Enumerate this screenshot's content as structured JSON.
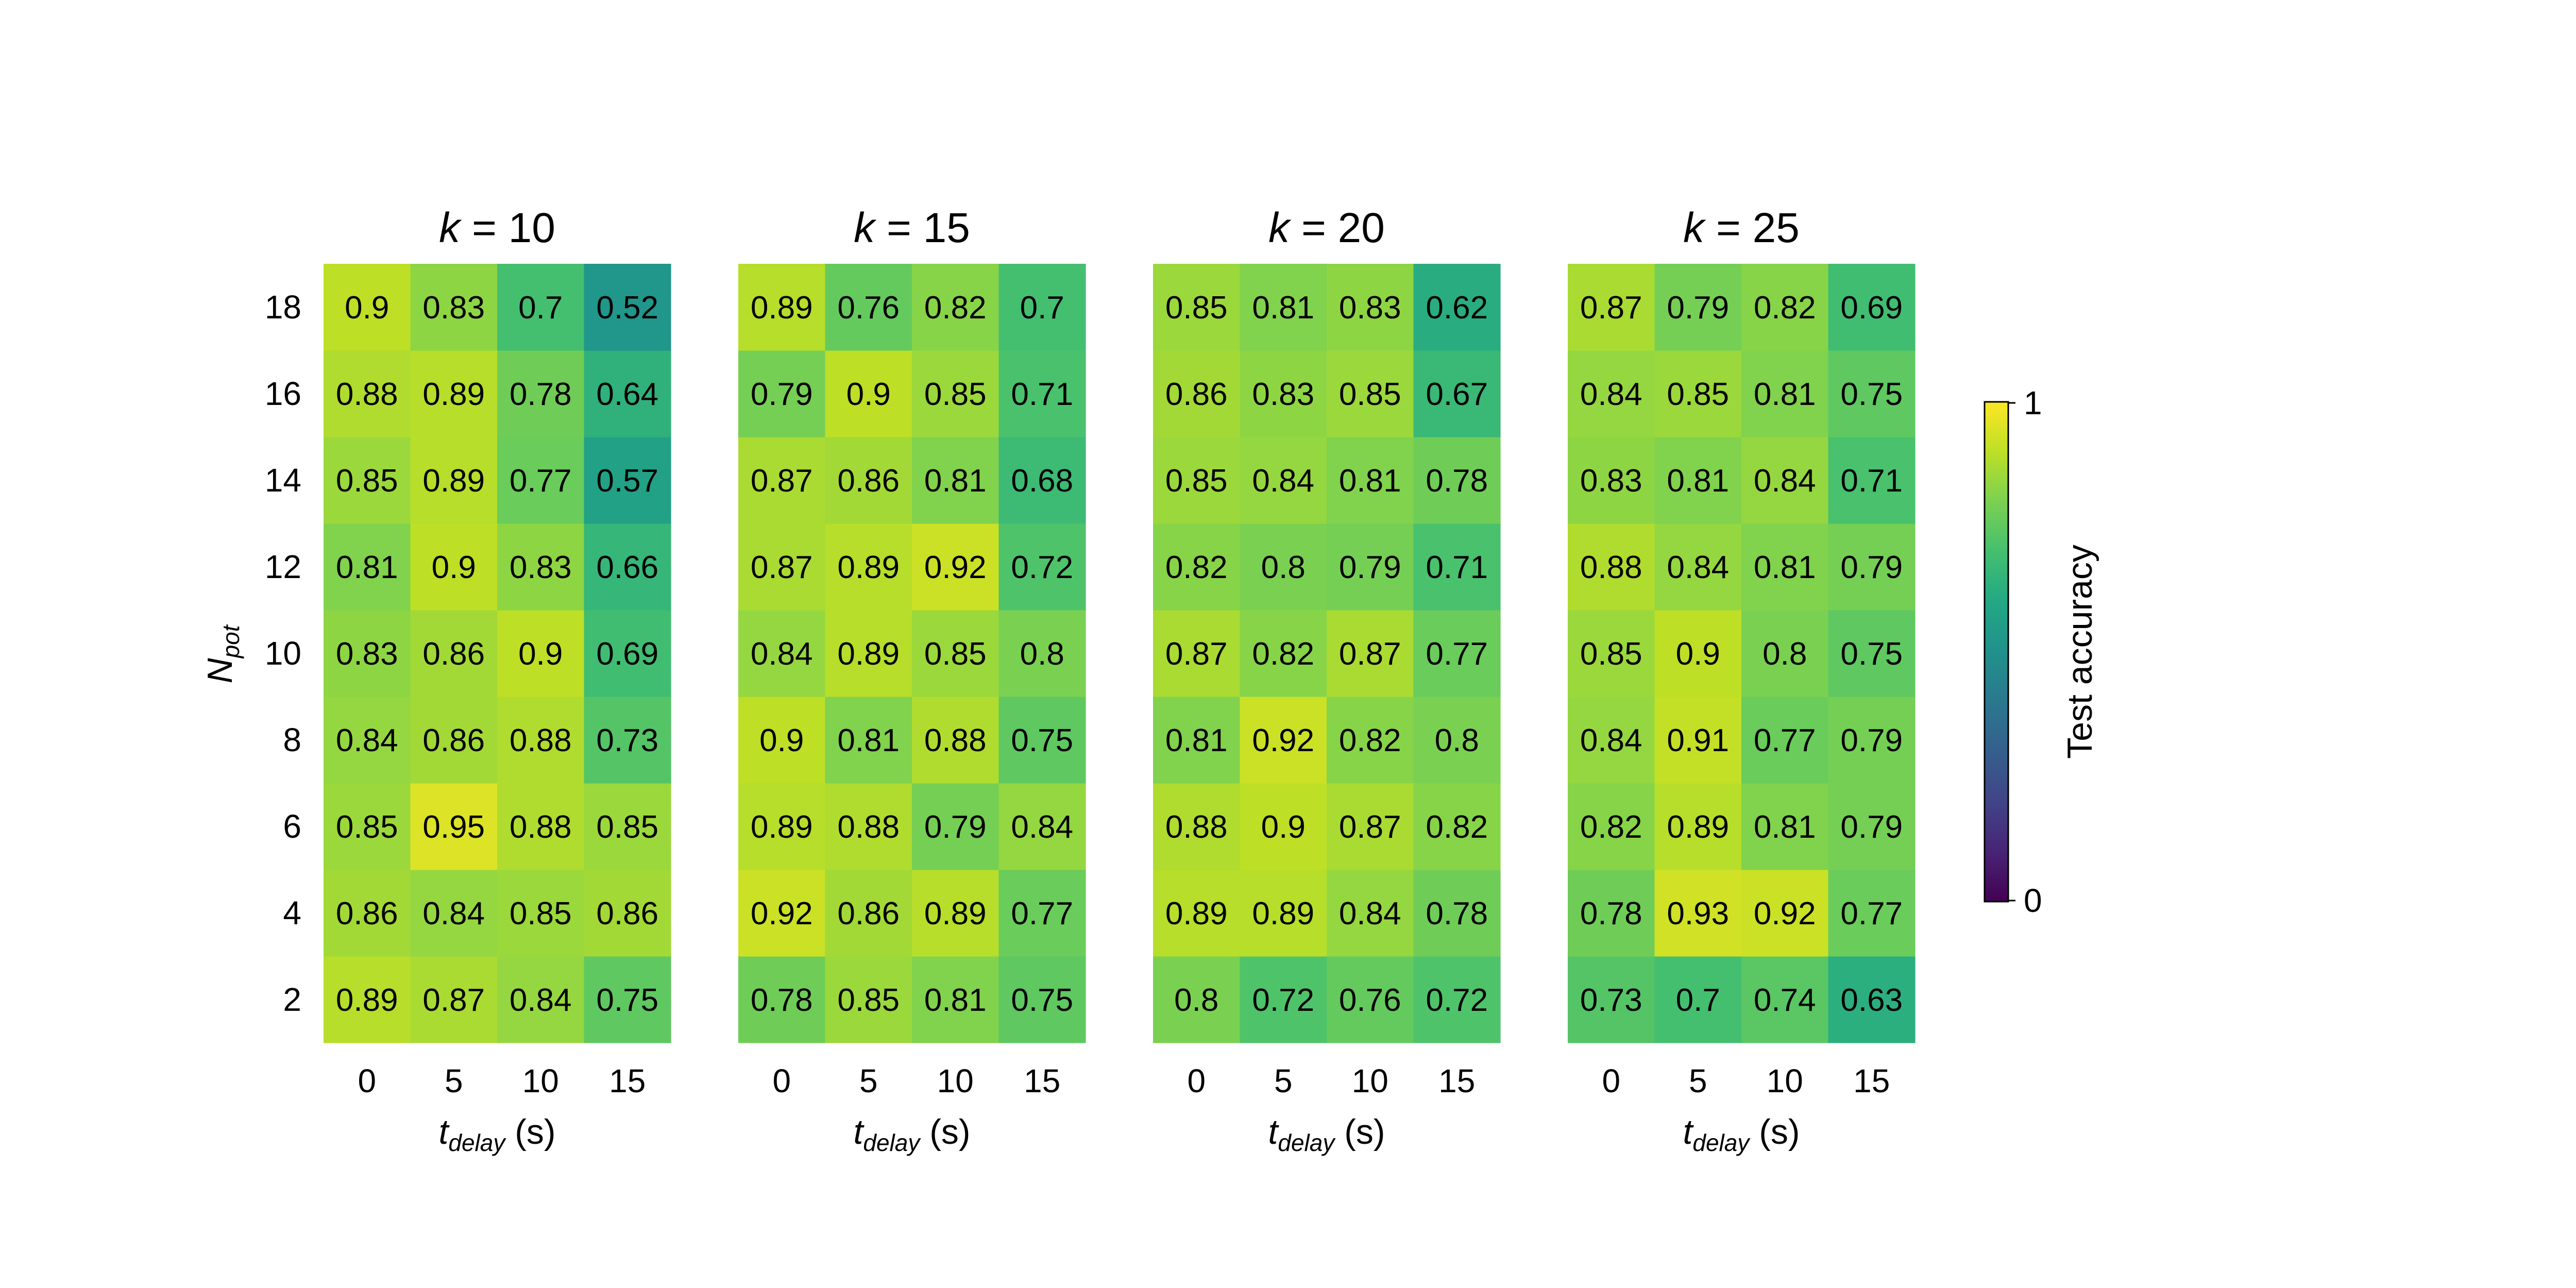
{
  "chart_data": {
    "type": "heatmap",
    "ylabel": {
      "main": "N",
      "sub": "pot"
    },
    "xlabel": {
      "main": "t",
      "sub": "delay",
      "unit": "(s)"
    },
    "x_categories": [
      "0",
      "5",
      "10",
      "15"
    ],
    "y_categories": [
      "2",
      "4",
      "6",
      "8",
      "10",
      "12",
      "14",
      "16",
      "18"
    ],
    "colorbar": {
      "label": "Test accuracy",
      "range": [
        0,
        1
      ],
      "ticks": [
        "0",
        "1"
      ],
      "colormap": "viridis"
    },
    "panels": [
      {
        "title": {
          "var": "k",
          "eq": " = 10"
        },
        "values": [
          [
            0.89,
            0.87,
            0.84,
            0.75
          ],
          [
            0.86,
            0.84,
            0.85,
            0.86
          ],
          [
            0.85,
            0.95,
            0.88,
            0.85
          ],
          [
            0.84,
            0.86,
            0.88,
            0.73
          ],
          [
            0.83,
            0.86,
            0.9,
            0.69
          ],
          [
            0.81,
            0.9,
            0.83,
            0.66
          ],
          [
            0.85,
            0.89,
            0.77,
            0.57
          ],
          [
            0.88,
            0.89,
            0.78,
            0.64
          ],
          [
            0.9,
            0.83,
            0.7,
            0.52
          ]
        ]
      },
      {
        "title": {
          "var": "k",
          "eq": " = 15"
        },
        "values": [
          [
            0.78,
            0.85,
            0.81,
            0.75
          ],
          [
            0.92,
            0.86,
            0.89,
            0.77
          ],
          [
            0.89,
            0.88,
            0.79,
            0.84
          ],
          [
            0.9,
            0.81,
            0.88,
            0.75
          ],
          [
            0.84,
            0.89,
            0.85,
            0.8
          ],
          [
            0.87,
            0.89,
            0.92,
            0.72
          ],
          [
            0.87,
            0.86,
            0.81,
            0.68
          ],
          [
            0.79,
            0.9,
            0.85,
            0.71
          ],
          [
            0.89,
            0.76,
            0.82,
            0.7
          ]
        ]
      },
      {
        "title": {
          "var": "k",
          "eq": " = 20"
        },
        "values": [
          [
            0.8,
            0.72,
            0.76,
            0.72
          ],
          [
            0.89,
            0.89,
            0.84,
            0.78
          ],
          [
            0.88,
            0.9,
            0.87,
            0.82
          ],
          [
            0.81,
            0.92,
            0.82,
            0.8
          ],
          [
            0.87,
            0.82,
            0.87,
            0.77
          ],
          [
            0.82,
            0.8,
            0.79,
            0.71
          ],
          [
            0.85,
            0.84,
            0.81,
            0.78
          ],
          [
            0.86,
            0.83,
            0.85,
            0.67
          ],
          [
            0.85,
            0.81,
            0.83,
            0.62
          ]
        ]
      },
      {
        "title": {
          "var": "k",
          "eq": " = 25"
        },
        "values": [
          [
            0.73,
            0.7,
            0.74,
            0.63
          ],
          [
            0.78,
            0.93,
            0.92,
            0.77
          ],
          [
            0.82,
            0.89,
            0.81,
            0.79
          ],
          [
            0.84,
            0.91,
            0.77,
            0.79
          ],
          [
            0.85,
            0.9,
            0.8,
            0.75
          ],
          [
            0.88,
            0.84,
            0.81,
            0.79
          ],
          [
            0.83,
            0.81,
            0.84,
            0.71
          ],
          [
            0.84,
            0.85,
            0.81,
            0.75
          ],
          [
            0.87,
            0.79,
            0.82,
            0.69
          ]
        ]
      }
    ]
  }
}
